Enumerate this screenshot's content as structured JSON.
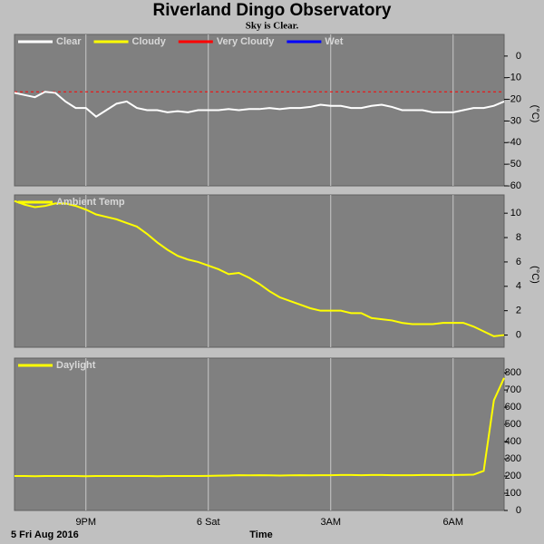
{
  "header": {
    "title": "Riverland Dingo Observatory",
    "subtitle": "Sky is Clear."
  },
  "chart_data": [
    {
      "type": "line",
      "ylabel": "(°C)",
      "grid": "x",
      "x": [
        19.25,
        19.5,
        19.75,
        20.0,
        20.25,
        20.5,
        20.75,
        21.0,
        21.25,
        21.5,
        21.75,
        22.0,
        22.25,
        22.5,
        22.75,
        23.0,
        23.25,
        23.5,
        23.75,
        24.0,
        24.25,
        24.5,
        24.75,
        25.0,
        25.25,
        25.5,
        25.75,
        26.0,
        26.25,
        26.5,
        26.75,
        27.0,
        27.25,
        27.5,
        27.75,
        28.0,
        28.25,
        28.5,
        28.75,
        29.0,
        29.25,
        29.5,
        29.75,
        30.0,
        30.25,
        30.5,
        30.75,
        31.0,
        31.25
      ],
      "xlim": [
        19.25,
        31.25
      ],
      "xticks": [
        21,
        24,
        27,
        30
      ],
      "ylim": [
        -60,
        10
      ],
      "yticks": [
        0,
        -10,
        -20,
        -30,
        -40,
        -50,
        -60
      ],
      "reference_line": {
        "value": -16.5,
        "color": "#ff0000"
      },
      "series": [
        {
          "name": "Clear",
          "color": "#ffffff",
          "values": [
            -17,
            -18,
            -19,
            -16.5,
            -17,
            -21,
            -24,
            -24,
            -28,
            -25,
            -22,
            -21,
            -24,
            -25,
            -25,
            -26,
            -25.5,
            -26,
            -25,
            -25,
            -25,
            -24.5,
            -25,
            -24.5,
            -24.5,
            -24,
            -24.5,
            -24,
            -24,
            -23.5,
            -22.5,
            -23,
            -23,
            -24,
            -24,
            -23,
            -22.5,
            -23.5,
            -25,
            -25,
            -25,
            -26,
            -26,
            -26,
            -25,
            -24,
            -24,
            -23,
            -21
          ]
        },
        {
          "name": "Cloudy",
          "color": "#ffff00",
          "values": [
            null,
            null,
            null,
            null,
            null,
            null,
            null,
            null,
            null,
            null,
            null,
            null,
            null,
            null,
            null,
            null,
            null,
            null,
            null,
            null,
            null,
            null,
            null,
            null,
            null,
            null,
            null,
            null,
            null,
            null,
            null,
            null,
            null,
            null,
            null,
            null,
            null,
            null,
            null,
            null,
            null,
            null,
            null,
            null,
            null,
            null,
            null,
            null,
            null
          ]
        },
        {
          "name": "Very Cloudy",
          "color": "#ff0000",
          "values": [
            null,
            null,
            null,
            null,
            null,
            null,
            null,
            null,
            null,
            null,
            null,
            null,
            null,
            null,
            null,
            null,
            null,
            null,
            null,
            null,
            null,
            null,
            null,
            null,
            null,
            null,
            null,
            null,
            null,
            null,
            null,
            null,
            null,
            null,
            null,
            null,
            null,
            null,
            null,
            null,
            null,
            null,
            null,
            null,
            null,
            null,
            null,
            null,
            null
          ]
        },
        {
          "name": "Wet",
          "color": "#0000ff",
          "values": [
            null,
            null,
            null,
            null,
            null,
            null,
            null,
            null,
            null,
            null,
            null,
            null,
            null,
            null,
            null,
            null,
            null,
            null,
            null,
            null,
            null,
            null,
            null,
            null,
            null,
            null,
            null,
            null,
            null,
            null,
            null,
            null,
            null,
            null,
            null,
            null,
            null,
            null,
            null,
            null,
            null,
            null,
            null,
            null,
            null,
            null,
            null,
            null,
            null
          ]
        }
      ]
    },
    {
      "type": "line",
      "ylabel": "(°C)",
      "grid": "x",
      "x": [
        19.25,
        19.5,
        19.75,
        20.0,
        20.25,
        20.5,
        20.75,
        21.0,
        21.25,
        21.5,
        21.75,
        22.0,
        22.25,
        22.5,
        22.75,
        23.0,
        23.25,
        23.5,
        23.75,
        24.0,
        24.25,
        24.5,
        24.75,
        25.0,
        25.25,
        25.5,
        25.75,
        26.0,
        26.25,
        26.5,
        26.75,
        27.0,
        27.25,
        27.5,
        27.75,
        28.0,
        28.25,
        28.5,
        28.75,
        29.0,
        29.25,
        29.5,
        29.75,
        30.0,
        30.25,
        30.5,
        30.75,
        31.0,
        31.25
      ],
      "xlim": [
        19.25,
        31.25
      ],
      "xticks": [
        21,
        24,
        27,
        30
      ],
      "ylim": [
        -1,
        11.5
      ],
      "yticks": [
        0,
        2,
        4,
        6,
        8,
        10
      ],
      "series": [
        {
          "name": "Ambient Temp",
          "color": "#ffff00",
          "values": [
            11.0,
            10.7,
            10.5,
            10.6,
            10.8,
            10.8,
            10.6,
            10.3,
            9.9,
            9.7,
            9.5,
            9.2,
            8.9,
            8.3,
            7.6,
            7.0,
            6.5,
            6.2,
            6.0,
            5.7,
            5.4,
            5.0,
            5.1,
            4.7,
            4.2,
            3.6,
            3.1,
            2.8,
            2.5,
            2.2,
            2.0,
            2.0,
            2.0,
            1.8,
            1.8,
            1.4,
            1.3,
            1.2,
            1.0,
            0.9,
            0.9,
            0.9,
            1.0,
            1.0,
            1.0,
            0.7,
            0.3,
            -0.1,
            0.0
          ]
        }
      ]
    },
    {
      "type": "line",
      "grid": "x",
      "xlabel": "Time",
      "date_label": "5 Fri Aug 2016",
      "x": [
        19.25,
        19.5,
        19.75,
        20.0,
        20.25,
        20.5,
        20.75,
        21.0,
        21.25,
        21.5,
        21.75,
        22.0,
        22.25,
        22.5,
        22.75,
        23.0,
        23.25,
        23.5,
        23.75,
        24.0,
        24.25,
        24.5,
        24.75,
        25.0,
        25.25,
        25.5,
        25.75,
        26.0,
        26.25,
        26.5,
        26.75,
        27.0,
        27.25,
        27.5,
        27.75,
        28.0,
        28.25,
        28.5,
        28.75,
        29.0,
        29.25,
        29.5,
        29.75,
        30.0,
        30.25,
        30.5,
        30.75,
        31.0,
        31.25
      ],
      "xlim": [
        19.25,
        31.25
      ],
      "xticks": [
        {
          "value": 21,
          "label": "9PM"
        },
        {
          "value": 24,
          "label": "6 Sat"
        },
        {
          "value": 27,
          "label": "3AM"
        },
        {
          "value": 30,
          "label": "6AM"
        }
      ],
      "ylim": [
        0,
        885
      ],
      "yticks": [
        0,
        100,
        200,
        300,
        400,
        500,
        600,
        700,
        800
      ],
      "series": [
        {
          "name": "Daylight",
          "color": "#ffff00",
          "values": [
            200,
            200,
            199,
            200,
            200,
            200,
            200,
            199,
            200,
            200,
            200,
            200,
            200,
            200,
            199,
            200,
            200,
            200,
            200,
            201,
            202,
            203,
            205,
            204,
            205,
            204,
            203,
            204,
            205,
            204,
            205,
            205,
            206,
            206,
            205,
            206,
            206,
            205,
            205,
            205,
            206,
            206,
            206,
            206,
            207,
            208,
            230,
            640,
            770
          ]
        }
      ]
    }
  ]
}
